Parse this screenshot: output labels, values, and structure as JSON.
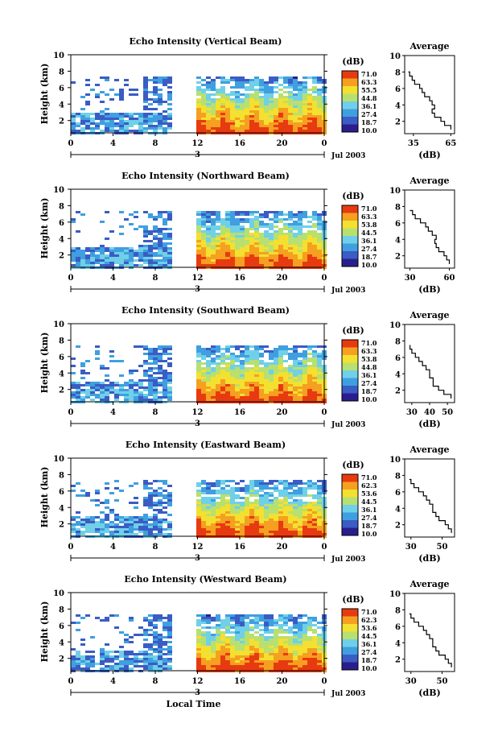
{
  "chart_data": [
    {
      "type": "heatmap",
      "title": "Echo Intensity (Vertical Beam)",
      "ylabel": "Height (km)",
      "ylim": [
        0.5,
        10
      ],
      "yticks": [
        "2",
        "4",
        "6",
        "8",
        "10"
      ],
      "xticks": [
        "0",
        "4",
        "8",
        "12",
        "16",
        "20",
        "0"
      ],
      "date_marker": "3",
      "date_label": "Jul 2003",
      "colorbar": {
        "unit": "(dB)",
        "ticks": [
          "71.0",
          "63.3",
          "55.5",
          "44.8",
          "36.1",
          "27.4",
          "18.7",
          "10.0"
        ]
      },
      "data_gaps_hours": [
        [
          9.5,
          11.8
        ]
      ],
      "average_profile": {
        "title": "Average",
        "xlabel": "(dB)",
        "xticks": [
          "35",
          "65"
        ],
        "xlim": [
          28,
          68
        ],
        "height_km": [
          1,
          1.5,
          2,
          2.5,
          3,
          3.5,
          4,
          4.5,
          5,
          5.5,
          6,
          6.5,
          7,
          7.5,
          8
        ],
        "db": [
          65,
          60,
          57,
          52,
          50,
          52,
          50,
          48,
          44,
          42,
          40,
          36,
          34,
          32,
          31
        ]
      }
    },
    {
      "type": "heatmap",
      "title": "Echo Intensity (Northward Beam)",
      "ylabel": "Height (km)",
      "ylim": [
        0.5,
        10
      ],
      "yticks": [
        "2",
        "4",
        "6",
        "8",
        "10"
      ],
      "xticks": [
        "0",
        "4",
        "8",
        "12",
        "16",
        "20",
        "0"
      ],
      "date_marker": "3",
      "date_label": "Jul 2003",
      "colorbar": {
        "unit": "(dB)",
        "ticks": [
          "71.0",
          "63.3",
          "53.8",
          "44.5",
          "36.1",
          "27.4",
          "18.7",
          "10.0"
        ]
      },
      "data_gaps_hours": [
        [
          9.5,
          11.8
        ]
      ],
      "average_profile": {
        "title": "Average",
        "xlabel": "(dB)",
        "xticks": [
          "30",
          "60"
        ],
        "xlim": [
          26,
          64
        ],
        "height_km": [
          1,
          1.5,
          2,
          2.5,
          3,
          3.5,
          4,
          4.5,
          5,
          5.5,
          6,
          6.5,
          7,
          7.5
        ],
        "db": [
          60,
          58,
          56,
          52,
          50,
          49,
          50,
          47,
          44,
          42,
          38,
          34,
          32,
          30
        ]
      }
    },
    {
      "type": "heatmap",
      "title": "Echo Intensity (Southward Beam)",
      "ylabel": "Height (km)",
      "ylim": [
        0.5,
        10
      ],
      "yticks": [
        "2",
        "4",
        "6",
        "8",
        "10"
      ],
      "xticks": [
        "0",
        "4",
        "8",
        "12",
        "16",
        "20",
        "0"
      ],
      "date_marker": "3",
      "date_label": "Jul 2003",
      "colorbar": {
        "unit": "(dB)",
        "ticks": [
          "71.0",
          "63.3",
          "53.8",
          "44.8",
          "36.1",
          "27.4",
          "18.7",
          "10.0"
        ]
      },
      "data_gaps_hours": [
        [
          9.5,
          11.8
        ]
      ],
      "average_profile": {
        "title": "Average",
        "xlabel": "(dB)",
        "xticks": [
          "30",
          "40",
          "50"
        ],
        "xlim": [
          26,
          54
        ],
        "height_km": [
          1,
          1.5,
          2,
          2.5,
          3,
          3.5,
          4,
          4.5,
          5,
          5.5,
          6,
          6.5,
          7,
          7.5
        ],
        "db": [
          52,
          48,
          45,
          42,
          42,
          40,
          40,
          38,
          36,
          34,
          32,
          30,
          29,
          29
        ]
      }
    },
    {
      "type": "heatmap",
      "title": "Echo Intensity (Eastward Beam)",
      "ylabel": "Height (km)",
      "ylim": [
        0.5,
        10
      ],
      "yticks": [
        "2",
        "4",
        "6",
        "8",
        "10"
      ],
      "xticks": [
        "0",
        "4",
        "8",
        "12",
        "16",
        "20",
        "0"
      ],
      "date_marker": "3",
      "date_label": "Jul 2003",
      "colorbar": {
        "unit": "(dB)",
        "ticks": [
          "71.0",
          "62.3",
          "53.6",
          "44.5",
          "36.1",
          "27.4",
          "18.7",
          "10.0"
        ]
      },
      "data_gaps_hours": [
        [
          9.5,
          11.8
        ]
      ],
      "average_profile": {
        "title": "Average",
        "xlabel": "(dB)",
        "xticks": [
          "30",
          "50"
        ],
        "xlim": [
          26,
          58
        ],
        "height_km": [
          1,
          1.5,
          2,
          2.5,
          3,
          3.5,
          4,
          4.5,
          5,
          5.5,
          6,
          6.5,
          7,
          7.5
        ],
        "db": [
          56,
          54,
          52,
          48,
          46,
          44,
          44,
          42,
          40,
          38,
          35,
          32,
          30,
          29
        ]
      }
    },
    {
      "type": "heatmap",
      "title": "Echo Intensity (Westward Beam)",
      "ylabel": "Height (km)",
      "ylim": [
        0.5,
        10
      ],
      "yticks": [
        "2",
        "4",
        "6",
        "8",
        "10"
      ],
      "xticks": [
        "0",
        "4",
        "8",
        "12",
        "16",
        "20",
        "0"
      ],
      "date_marker": "3",
      "date_label": "Jul 2003",
      "xlabel": "Local Time",
      "colorbar": {
        "unit": "(dB)",
        "ticks": [
          "71.0",
          "62.3",
          "53.6",
          "44.5",
          "36.1",
          "27.4",
          "18.7",
          "10.0"
        ]
      },
      "data_gaps_hours": [
        [
          9.5,
          11.8
        ]
      ],
      "average_profile": {
        "title": "Average",
        "xlabel": "(dB)",
        "xticks": [
          "30",
          "50"
        ],
        "xlim": [
          26,
          58
        ],
        "height_km": [
          1,
          1.5,
          2,
          2.5,
          3,
          3.5,
          4,
          4.5,
          5,
          5.5,
          6,
          6.5,
          7,
          7.5
        ],
        "db": [
          56,
          54,
          52,
          48,
          46,
          44,
          44,
          42,
          40,
          38,
          35,
          32,
          30,
          29
        ]
      }
    }
  ],
  "colors": {
    "scale": [
      "#2a1e8c",
      "#3a5cc4",
      "#3f9fe0",
      "#6fd0e8",
      "#b8e070",
      "#f4e030",
      "#f5a020",
      "#e83a10"
    ],
    "axis": "#000000"
  }
}
